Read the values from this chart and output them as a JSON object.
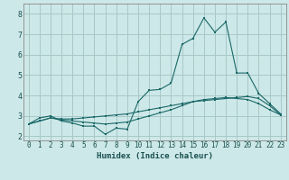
{
  "xlabel": "Humidex (Indice chaleur)",
  "bg_color": "#cde8e8",
  "grid_color": "#a8c8c8",
  "line_color": "#1a6868",
  "xlim": [
    -0.5,
    23.5
  ],
  "ylim": [
    1.8,
    8.5
  ],
  "xticks": [
    0,
    1,
    2,
    3,
    4,
    5,
    6,
    7,
    8,
    9,
    10,
    11,
    12,
    13,
    14,
    15,
    16,
    17,
    18,
    19,
    20,
    21,
    22,
    23
  ],
  "yticks": [
    2,
    3,
    4,
    5,
    6,
    7,
    8
  ],
  "series1_x": [
    0,
    1,
    2,
    3,
    4,
    5,
    6,
    7,
    8,
    9,
    10,
    11,
    12,
    13,
    14,
    15,
    16,
    17,
    18,
    19,
    20,
    21,
    22,
    23
  ],
  "series1_y": [
    2.6,
    2.9,
    3.0,
    2.75,
    2.65,
    2.5,
    2.5,
    2.1,
    2.4,
    2.35,
    3.7,
    4.25,
    4.3,
    4.6,
    6.5,
    6.8,
    7.8,
    7.1,
    7.6,
    5.1,
    5.1,
    4.1,
    3.6,
    3.1
  ],
  "series2_x": [
    0,
    1,
    2,
    3,
    4,
    5,
    6,
    7,
    8,
    9,
    10,
    11,
    12,
    13,
    14,
    15,
    16,
    17,
    18,
    19,
    20,
    21,
    22,
    23
  ],
  "series2_y": [
    2.6,
    2.75,
    2.9,
    2.85,
    2.85,
    2.9,
    2.95,
    3.0,
    3.05,
    3.1,
    3.2,
    3.3,
    3.4,
    3.5,
    3.6,
    3.7,
    3.75,
    3.8,
    3.85,
    3.9,
    3.95,
    3.85,
    3.5,
    3.05
  ],
  "series3_x": [
    0,
    1,
    2,
    3,
    4,
    5,
    6,
    7,
    8,
    9,
    10,
    11,
    12,
    13,
    14,
    15,
    16,
    17,
    18,
    19,
    20,
    21,
    22,
    23
  ],
  "series3_y": [
    2.6,
    2.75,
    2.9,
    2.8,
    2.75,
    2.7,
    2.65,
    2.6,
    2.65,
    2.7,
    2.85,
    3.0,
    3.15,
    3.3,
    3.5,
    3.7,
    3.8,
    3.85,
    3.9,
    3.85,
    3.8,
    3.6,
    3.3,
    3.05
  ],
  "tick_fontsize": 5.5,
  "xlabel_fontsize": 6.5
}
